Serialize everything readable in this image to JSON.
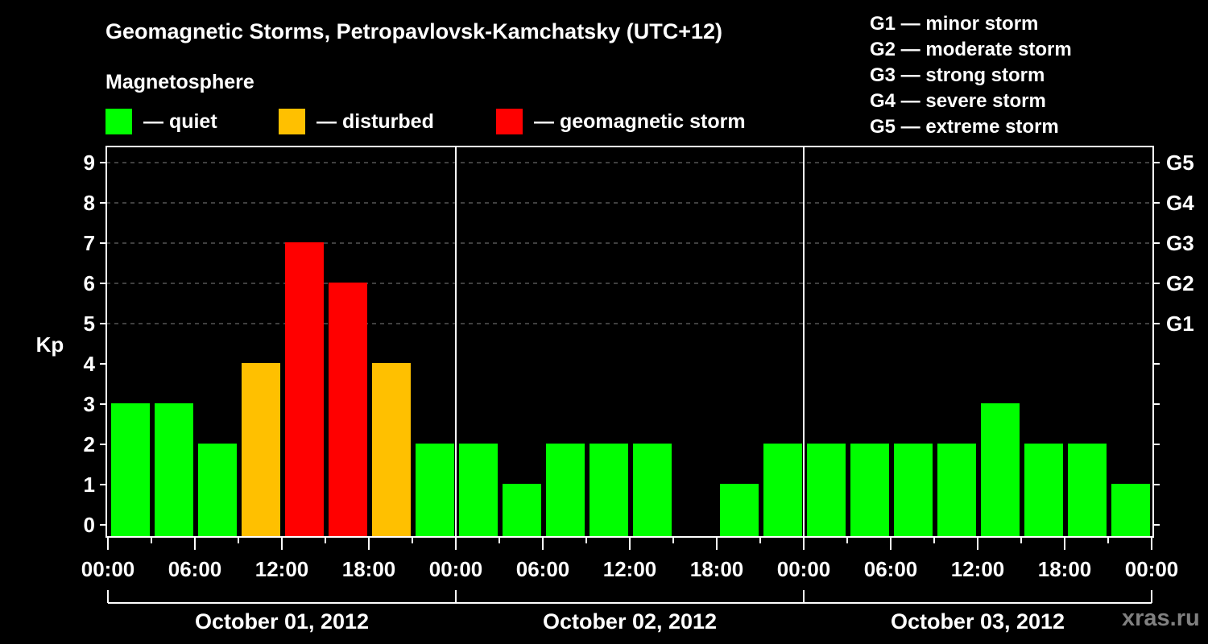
{
  "header": {
    "title": "Geomagnetic Storms, Petropavlovsk-Kamchatsky (UTC+12)",
    "subtitle": "Magnetosphere"
  },
  "legend": [
    {
      "label": "— quiet",
      "color": "#00ff00"
    },
    {
      "label": "— disturbed",
      "color": "#ffc000"
    },
    {
      "label": "— geomagnetic storm",
      "color": "#ff0000"
    }
  ],
  "g_scale_legend": [
    "G1 — minor storm",
    "G2 — moderate storm",
    "G3 — strong storm",
    "G4 — severe storm",
    "G5 — extreme storm"
  ],
  "watermark": "xras.ru",
  "colors": {
    "quiet": "#00ff00",
    "disturbed": "#ffc000",
    "storm": "#ff0000",
    "grid": "#808080"
  },
  "chart_data": {
    "type": "bar",
    "title": "Geomagnetic Storms, Petropavlovsk-Kamchatsky (UTC+12)",
    "ylabel": "Kp",
    "xlabel": "",
    "ylim": [
      0,
      9
    ],
    "yticks": [
      0,
      1,
      2,
      3,
      4,
      5,
      6,
      7,
      8,
      9
    ],
    "right_axis_labels": [
      {
        "value": 5,
        "label": "G1"
      },
      {
        "value": 6,
        "label": "G2"
      },
      {
        "value": 7,
        "label": "G3"
      },
      {
        "value": 8,
        "label": "G4"
      },
      {
        "value": 9,
        "label": "G5"
      }
    ],
    "grid": "dashed horizontal lines at Kp 5–9",
    "xtick_labels": [
      "00:00",
      "06:00",
      "12:00",
      "18:00",
      "00:00",
      "06:00",
      "12:00",
      "18:00",
      "00:00",
      "06:00",
      "12:00",
      "18:00",
      "00:00"
    ],
    "days": [
      "October 01, 2012",
      "October 02, 2012",
      "October 03, 2012"
    ],
    "interval_hours": 3,
    "categories": [
      "Oct 01 00-03",
      "Oct 01 03-06",
      "Oct 01 06-09",
      "Oct 01 09-12",
      "Oct 01 12-15",
      "Oct 01 15-18",
      "Oct 01 18-21",
      "Oct 01 21-24",
      "Oct 02 00-03",
      "Oct 02 03-06",
      "Oct 02 06-09",
      "Oct 02 09-12",
      "Oct 02 12-15",
      "Oct 02 15-18",
      "Oct 02 18-21",
      "Oct 02 21-24",
      "Oct 03 00-03",
      "Oct 03 03-06",
      "Oct 03 06-09",
      "Oct 03 09-12",
      "Oct 03 12-15",
      "Oct 03 15-18",
      "Oct 03 18-21",
      "Oct 03 21-24"
    ],
    "values": [
      3,
      3,
      2,
      4,
      7,
      6,
      4,
      2,
      2,
      1,
      2,
      2,
      2,
      null,
      1,
      2,
      2,
      2,
      2,
      2,
      3,
      2,
      2,
      1
    ],
    "status": [
      "quiet",
      "quiet",
      "quiet",
      "disturbed",
      "storm",
      "storm",
      "disturbed",
      "quiet",
      "quiet",
      "quiet",
      "quiet",
      "quiet",
      "quiet",
      null,
      "quiet",
      "quiet",
      "quiet",
      "quiet",
      "quiet",
      "quiet",
      "quiet",
      "quiet",
      "quiet",
      "quiet"
    ],
    "legend": [
      "quiet",
      "disturbed",
      "geomagnetic storm"
    ]
  }
}
